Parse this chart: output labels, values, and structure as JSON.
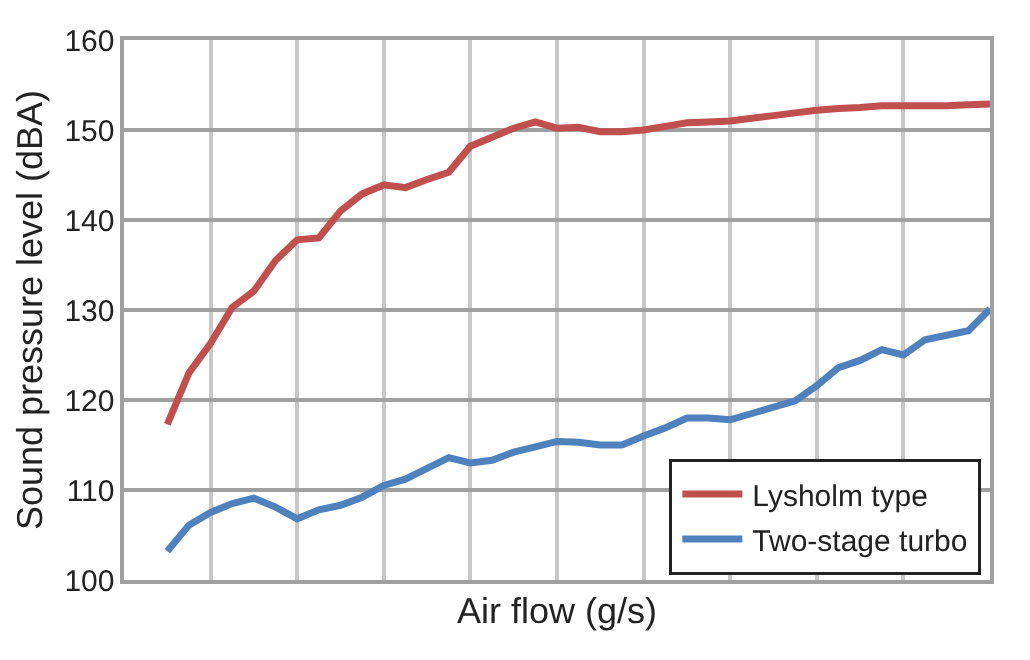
{
  "chart_data": {
    "type": "line",
    "xlabel": "Air flow (g/s)",
    "ylabel": "Sound pressure level (dBA)",
    "categories": [
      null,
      null,
      null,
      null,
      null,
      null,
      null,
      null,
      null,
      null,
      null,
      null,
      null,
      null,
      null,
      null,
      null,
      null,
      null,
      null,
      null,
      null,
      null,
      null,
      null,
      null,
      null,
      null,
      null,
      null,
      null,
      null,
      null,
      null,
      null,
      null,
      null,
      null,
      null,
      null,
      null
    ],
    "ylim": [
      100,
      160
    ],
    "yticks": [
      100,
      110,
      120,
      130,
      140,
      150,
      160
    ],
    "grid": true,
    "legend": "bottom right",
    "tick_labels": "y",
    "marker": "none",
    "line_style": "solid",
    "series": [
      {
        "name": "Lysholm type",
        "color": "#c0504d",
        "values": [
          null,
          null,
          117.3,
          123,
          126.3,
          130.3,
          132.1,
          135.5,
          137.8,
          138,
          141,
          142.9,
          143.9,
          143.6,
          144.5,
          145.3,
          148.2,
          149.2,
          150.2,
          150.9,
          150.2,
          150.3,
          149.8,
          149.8,
          150,
          150.4,
          150.8,
          150.9,
          151,
          151.3,
          151.6,
          151.9,
          152.2,
          152.4,
          152.5,
          152.7,
          152.7,
          152.7,
          152.7,
          152.8,
          152.9
        ]
      },
      {
        "name": "Two-stage turbo",
        "color": "#4f81bd",
        "values": [
          null,
          null,
          103.2,
          106.1,
          107.5,
          108.5,
          109.1,
          108.1,
          106.8,
          107.8,
          108.3,
          109.2,
          110.5,
          111.2,
          112.4,
          113.6,
          113,
          113.3,
          114.2,
          114.8,
          115.4,
          115.3,
          115,
          115,
          116,
          116.9,
          118,
          118,
          117.8,
          118.5,
          119.2,
          119.9,
          121.6,
          123.6,
          124.4,
          125.6,
          125,
          126.7,
          127.2,
          127.7,
          130.1
        ]
      }
    ]
  }
}
